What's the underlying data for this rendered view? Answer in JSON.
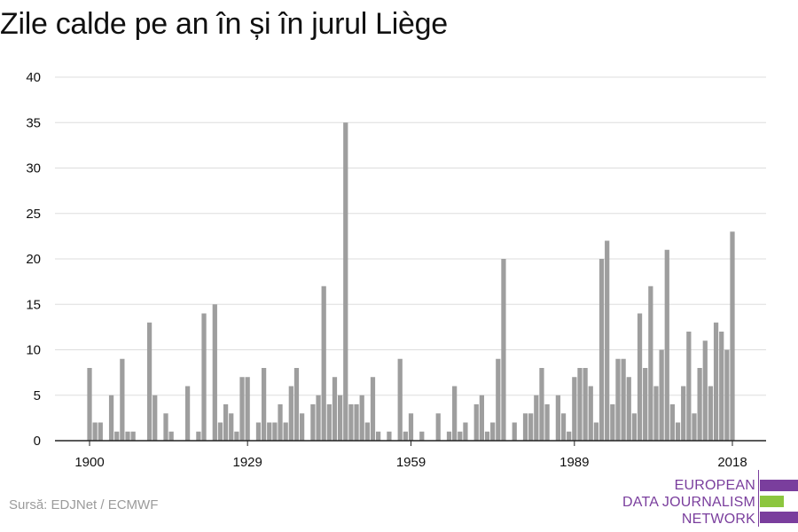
{
  "title": "Zile calde pe an în și în jurul Liège",
  "source": "Sursă: EDJNet / ECMWF",
  "logo": {
    "line1": "EUROPEAN",
    "line2": "DATA JOURNALISM",
    "line3": "NETWORK"
  },
  "colors": {
    "bar": "#9e9e9e",
    "grid": "#dddddd",
    "axis": "#222222",
    "text": "#111111",
    "logo_purple": "#7a3e9d",
    "logo_green": "#8cc63f"
  },
  "chart_data": {
    "type": "bar",
    "title": "Zile calde pe an în și în jurul Liège",
    "x_start": 1900,
    "x_end": 2018,
    "x_ticks": [
      1900,
      1929,
      1959,
      1989,
      2018
    ],
    "y_ticks": [
      0,
      5,
      10,
      15,
      20,
      25,
      30,
      35,
      40
    ],
    "ylim": [
      0,
      40
    ],
    "grid": true,
    "values": [
      8,
      2,
      2,
      0,
      5,
      1,
      9,
      1,
      1,
      0,
      0,
      13,
      5,
      0,
      3,
      1,
      0,
      0,
      6,
      0,
      1,
      14,
      0,
      15,
      2,
      4,
      3,
      1,
      7,
      7,
      0,
      2,
      8,
      2,
      2,
      4,
      2,
      6,
      8,
      3,
      0,
      4,
      5,
      17,
      4,
      7,
      5,
      35,
      4,
      4,
      5,
      2,
      7,
      1,
      0,
      1,
      0,
      9,
      1,
      3,
      0,
      1,
      0,
      0,
      3,
      0,
      1,
      6,
      1,
      2,
      0,
      4,
      5,
      1,
      2,
      9,
      20,
      0,
      2,
      0,
      3,
      3,
      5,
      8,
      4,
      0,
      5,
      3,
      1,
      7,
      8,
      8,
      6,
      2,
      20,
      22,
      4,
      9,
      9,
      7,
      3,
      14,
      8,
      17,
      6,
      10,
      21,
      4,
      2,
      6,
      12,
      3,
      8,
      11,
      6,
      13,
      12,
      10,
      23
    ]
  }
}
